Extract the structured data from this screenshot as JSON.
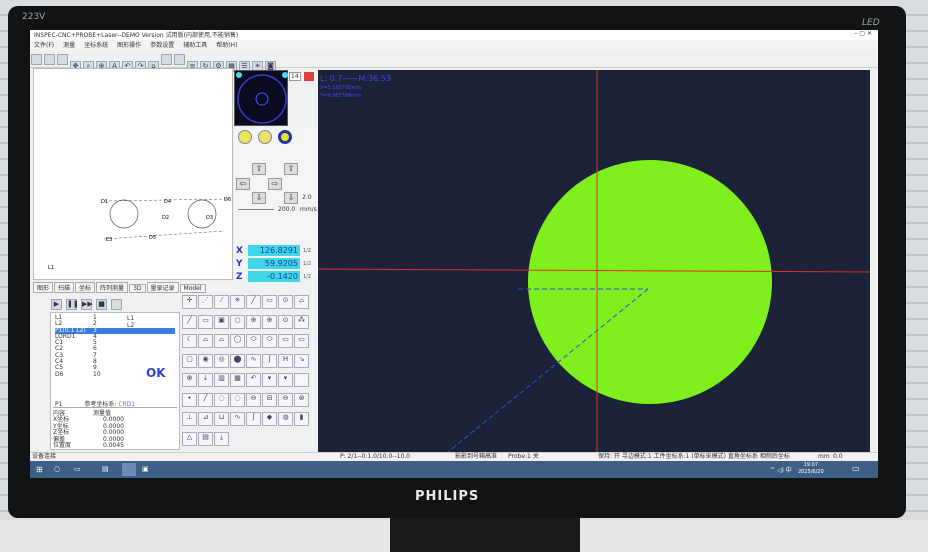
{
  "monitor": {
    "model": "223V",
    "badge": "LED",
    "brand": "PHILIPS"
  },
  "app": {
    "title": "INSPEC-CNC+PROBE+Laser--DEMO Version  试用版(内部使用,不能销售)",
    "menu": [
      "文件(F)",
      "测量",
      "坐标系统",
      "图形操作",
      "参数设置",
      "辅助工具",
      "帮助(H)"
    ]
  },
  "cad": {
    "labels": [
      "D1",
      "D4",
      "D2",
      "D3",
      "D5",
      "D6",
      "E3",
      "L1"
    ]
  },
  "left_tabs": [
    "图形",
    "扫描",
    "坐标",
    "阵列测量",
    "3D",
    "量录记录",
    "Model"
  ],
  "camera": {
    "zoom_value": "14"
  },
  "motion": {
    "step": "2.0",
    "speed": "200.0",
    "speed_unit": "mm/s"
  },
  "dro": {
    "x": "126.8291",
    "y": "59.9205",
    "z": "-0.1420",
    "half_label": "1/2"
  },
  "overlay": {
    "line1": "L: 0.7——M:36.53",
    "line2": "X=5.595795mm",
    "line3": "Y=9.985788mm"
  },
  "feature_list": {
    "items": [
      [
        "L1",
        "1"
      ],
      [
        "L2",
        "2"
      ],
      [
        "P1(0.1 L2)",
        "3"
      ],
      [
        "LORD1",
        "4"
      ],
      [
        "C1",
        "5"
      ],
      [
        "C2",
        "6"
      ],
      [
        "C3",
        "7"
      ],
      [
        "C4",
        "8"
      ],
      [
        "C5",
        "9"
      ],
      [
        "D6",
        "10"
      ]
    ],
    "selected": 2,
    "side": [
      "L1",
      "L2"
    ],
    "ok": "OK",
    "ref_label": "P1",
    "ref_text": "参考坐标系:",
    "ref_value": "CRD1",
    "table_headers": [
      "内容",
      "测量值"
    ],
    "rows": [
      [
        "X坐标",
        "0.0000"
      ],
      [
        "Y坐标",
        "0.0000"
      ],
      [
        "Z坐标",
        "0.0000"
      ],
      [
        "偏差",
        "0.0000"
      ],
      [
        "位置度",
        "0.0045"
      ]
    ]
  },
  "status": {
    "left": "设备连接",
    "coords": "P: 2/1--0:1.0/10.0--10.0",
    "probe_info": "影影到号箱高准",
    "probe": "Probe:1 关",
    "mode": "保持: 开  寻边模式:1  工件坐标系:1 (单标采模式)  直角坐标系  相侧后坐标",
    "unit": "mm",
    "value": "0.0"
  },
  "taskbar": {
    "time": "19:07",
    "date": "2025/6/20"
  },
  "colors": {
    "viewport": "#1c2338",
    "circle": "#7ff01e",
    "dro": "#40d6e8",
    "crosshair": "#e03020"
  }
}
